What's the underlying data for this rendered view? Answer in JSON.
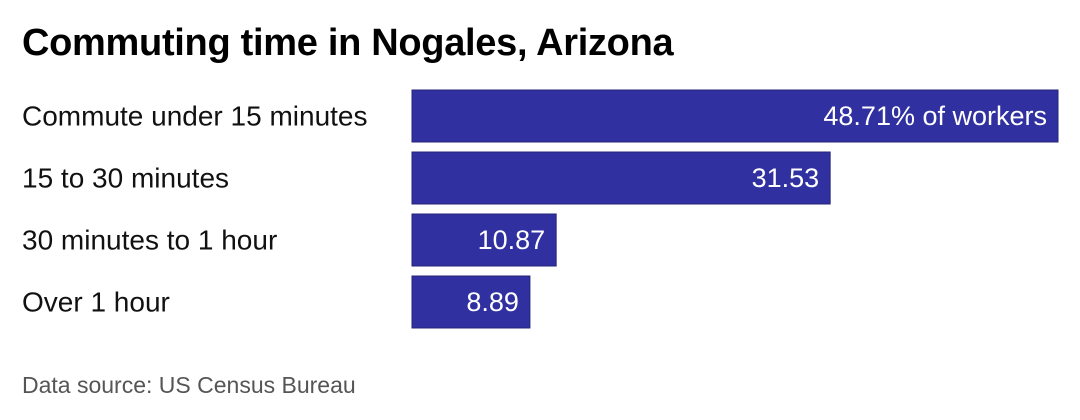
{
  "colors": {
    "bar": "#3030a0",
    "bar_stroke": "#24247a",
    "value_text": "#ffffff",
    "label_text": "#111111",
    "source_text": "#555555"
  },
  "chart_data": {
    "type": "bar",
    "orientation": "horizontal",
    "title": "Commuting time in Nogales, Arizona",
    "categories": [
      "Commute under 15 minutes",
      "15 to 30 minutes",
      "30 minutes to 1 hour",
      "Over 1 hour"
    ],
    "values": [
      48.71,
      31.53,
      10.87,
      8.89
    ],
    "value_labels": [
      "48.71% of workers",
      "31.53",
      "10.87",
      "8.89"
    ],
    "unit": "% of workers",
    "xlim": [
      0,
      48.71
    ],
    "grid": false,
    "legend": "none",
    "source": "Data source: US Census Bureau"
  }
}
